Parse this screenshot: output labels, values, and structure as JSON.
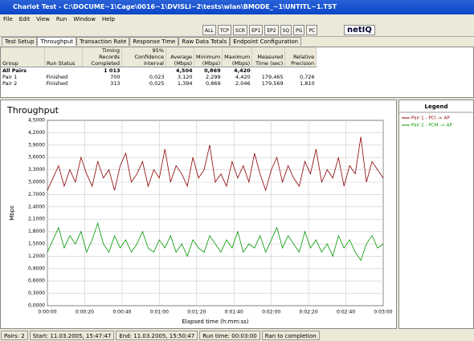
{
  "window": {
    "title": "Chariot Test - C:\\DOCUME~1\\Cage\\0016~1\\DVISLI~2\\tests\\wlan\\BMODE_~1\\UNTITL~1.TST"
  },
  "menu": [
    "File",
    "Edit",
    "View",
    "Run",
    "Window",
    "Help"
  ],
  "toolbar": [
    "ALL",
    "TCP",
    "SCR",
    "EP1",
    "EP2",
    "SQ",
    "PG",
    "PC"
  ],
  "logo": "netIQ",
  "tabs": [
    "Test Setup",
    "Throughput",
    "Transaction Rate",
    "Response Time",
    "Raw Data Totals",
    "Endpoint Configuration"
  ],
  "table": {
    "headers": [
      "Group",
      "Run Status",
      "Timing Records Completed",
      "95% Confidence Interval",
      "Average (Mbps)",
      "Minimum (Mbps)",
      "Maximum (Mbps)",
      "Measured Time (sec)",
      "Relative Precision"
    ],
    "rows": [
      [
        "All Pairs",
        null,
        "1 013",
        null,
        "4,504",
        "0,869",
        "4,420",
        null,
        null
      ],
      [
        "Pair 1",
        "Finished",
        "700",
        "0,023",
        "3,120",
        "2,299",
        "4,420",
        "179,465",
        "0,726"
      ],
      [
        "Pair 2",
        "Finished",
        "313",
        "0,025",
        "1,394",
        "0,869",
        "2,046",
        "179,569",
        "1,810"
      ]
    ]
  },
  "chart_data": {
    "type": "line",
    "title": "Throughput",
    "x_label": "Elapsed time (h:mm:ss)",
    "y_label": "Mbps",
    "legend_title": "Legend",
    "grid": true,
    "x": [
      0,
      3,
      6,
      9,
      12,
      15,
      18,
      21,
      24,
      27,
      30,
      33,
      36,
      39,
      42,
      45,
      48,
      51,
      54,
      57,
      60,
      63,
      66,
      69,
      72,
      75,
      78,
      81,
      84,
      87,
      90,
      93,
      96,
      99,
      102,
      105,
      108,
      111,
      114,
      117,
      120,
      123,
      126,
      129,
      132,
      135,
      138,
      141,
      144,
      147,
      150,
      153,
      156,
      159,
      162,
      165,
      168,
      171,
      174,
      177,
      180
    ],
    "xlim": [
      0,
      180
    ],
    "xticks": [
      {
        "value": 0,
        "label": "0:00:00"
      },
      {
        "value": 20,
        "label": "0:00:20"
      },
      {
        "value": 40,
        "label": "0:00:40"
      },
      {
        "value": 60,
        "label": "0:01:00"
      },
      {
        "value": 80,
        "label": "0:01:20"
      },
      {
        "value": 100,
        "label": "0:01:40"
      },
      {
        "value": 120,
        "label": "0:02:00"
      },
      {
        "value": 140,
        "label": "0:02:20"
      },
      {
        "value": 160,
        "label": "0:02:40"
      },
      {
        "value": 180,
        "label": "0:03:00"
      }
    ],
    "ylim": [
      0,
      4.5
    ],
    "yticks": [
      {
        "value": 0,
        "label": "0,0000"
      },
      {
        "value": 0.3,
        "label": "0,3000"
      },
      {
        "value": 0.6,
        "label": "0,6000"
      },
      {
        "value": 0.9,
        "label": "0,9000"
      },
      {
        "value": 1.2,
        "label": "1,2000"
      },
      {
        "value": 1.5,
        "label": "1,5000"
      },
      {
        "value": 1.8,
        "label": "1,8000"
      },
      {
        "value": 2.1,
        "label": "2,1000"
      },
      {
        "value": 2.4,
        "label": "2,4000"
      },
      {
        "value": 2.7,
        "label": "2,7000"
      },
      {
        "value": 3.0,
        "label": "3,0000"
      },
      {
        "value": 3.3,
        "label": "3,3000"
      },
      {
        "value": 3.6,
        "label": "3,6000"
      },
      {
        "value": 3.9,
        "label": "3,9000"
      },
      {
        "value": 4.2,
        "label": "4,2000"
      },
      {
        "value": 4.5,
        "label": "4,5000"
      }
    ],
    "series": [
      {
        "name": "Pair 1 - PCI -> AP",
        "color": "#8b0000",
        "values": [
          2.8,
          3.1,
          3.4,
          2.9,
          3.3,
          3.0,
          3.6,
          3.2,
          2.9,
          3.5,
          3.1,
          3.3,
          2.8,
          3.4,
          3.7,
          3.0,
          3.2,
          3.5,
          2.9,
          3.3,
          3.1,
          3.8,
          3.0,
          3.4,
          3.2,
          2.9,
          3.6,
          3.1,
          3.3,
          3.9,
          3.0,
          3.2,
          2.9,
          3.5,
          3.1,
          3.4,
          3.0,
          3.7,
          3.2,
          2.8,
          3.3,
          3.6,
          3.0,
          3.4,
          3.1,
          2.9,
          3.5,
          3.2,
          3.8,
          3.0,
          3.3,
          3.1,
          3.6,
          2.9,
          3.4,
          3.2,
          4.1,
          3.0,
          3.5,
          3.3,
          3.1
        ]
      },
      {
        "name": "Pair 2 - PCM -> AP",
        "color": "#009900",
        "values": [
          1.3,
          1.6,
          1.9,
          1.4,
          1.7,
          1.5,
          1.8,
          1.3,
          1.6,
          2.0,
          1.5,
          1.3,
          1.7,
          1.4,
          1.6,
          1.3,
          1.5,
          1.8,
          1.4,
          1.3,
          1.6,
          1.4,
          1.7,
          1.3,
          1.5,
          1.2,
          1.6,
          1.4,
          1.3,
          1.7,
          1.5,
          1.3,
          1.6,
          1.4,
          1.8,
          1.3,
          1.5,
          1.4,
          1.7,
          1.3,
          1.6,
          1.9,
          1.4,
          1.7,
          1.5,
          1.3,
          1.8,
          1.4,
          1.6,
          1.3,
          1.5,
          1.2,
          1.7,
          1.4,
          1.6,
          1.3,
          1.1,
          1.5,
          1.7,
          1.4,
          1.5
        ]
      }
    ]
  },
  "status_bar": [
    "Pairs: 2",
    "Start: 11.03.2005, 15:47:47",
    "End: 11.03.2005, 15:50:47",
    "Run time: 00:03:00",
    "Ran to completion"
  ]
}
